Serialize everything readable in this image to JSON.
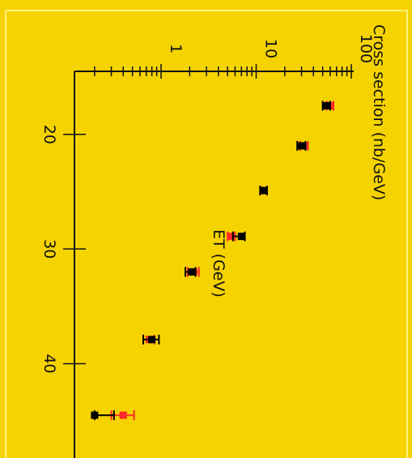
{
  "chart_data": {
    "type": "scatter",
    "orientation": "rotated-90",
    "xlabel": "ET (GeV)",
    "ylabel": "Cross section (nb/GeV)",
    "x_ticks": [
      "20",
      "30",
      "40"
    ],
    "y_ticks": [
      "1",
      "10",
      "100"
    ],
    "y_scale": "log",
    "xlim": [
      14.5,
      51.5
    ],
    "ylim": [
      0.17,
      125
    ],
    "grid": false,
    "series": [
      {
        "color": "#000000",
        "points": [
          {
            "x": 17.5,
            "y": 55,
            "ylo": 50,
            "yhi": 60
          },
          {
            "x": 21.0,
            "y": 30,
            "ylo": 27,
            "yhi": 33
          },
          {
            "x": 24.9,
            "y": 12,
            "ylo": 11,
            "yhi": 13
          },
          {
            "x": 28.9,
            "y": 7.0,
            "ylo": 5.7,
            "yhi": 7.6
          },
          {
            "x": 32.0,
            "y": 2.1,
            "ylo": 1.8,
            "yhi": 2.3
          },
          {
            "x": 37.9,
            "y": 0.8,
            "ylo": 0.65,
            "yhi": 0.95
          },
          {
            "x": 44.5,
            "y": 0.2,
            "ylo": 0.2,
            "yhi": 0.32
          }
        ]
      },
      {
        "color": "#ff2a2a",
        "points": [
          {
            "x": 17.5,
            "y": 60,
            "ylo": 55,
            "yhi": 65
          },
          {
            "x": 21.0,
            "y": 32,
            "ylo": 29,
            "yhi": 35
          },
          {
            "x": 24.9,
            "y": 12,
            "ylo": 11,
            "yhi": 13
          },
          {
            "x": 28.9,
            "y": 5.5,
            "ylo": 5.0,
            "yhi": 6.0
          },
          {
            "x": 32.0,
            "y": 2.2,
            "ylo": 1.9,
            "yhi": 2.5
          },
          {
            "x": 37.9,
            "y": 0.75,
            "ylo": 0.65,
            "yhi": 0.85
          },
          {
            "x": 44.5,
            "y": 0.4,
            "ylo": 0.3,
            "yhi": 0.52
          }
        ]
      }
    ]
  },
  "colors": {
    "background": "#f5d300",
    "panel_border": "#fff27a",
    "axis": "#111111"
  }
}
